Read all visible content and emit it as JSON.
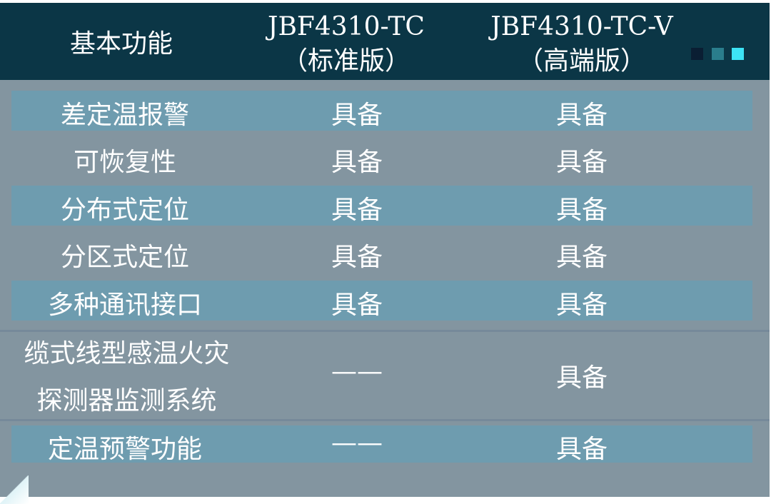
{
  "header": {
    "col1": "基本功能",
    "col2_line1": "JBF4310-TC",
    "col2_line2": "（标准版）",
    "col3_line1": "JBF4310-TC-V",
    "col3_line2": "（高端版）"
  },
  "colors": {
    "header_bg": "#0b3646",
    "body_bg": "#8395a0",
    "band": "#6e9caf",
    "squares": [
      "#0a1e33",
      "#2a7d8c",
      "#3de3f5"
    ]
  },
  "rows": [
    {
      "feature": "差定温报警",
      "standard": "具备",
      "premium": "具备"
    },
    {
      "feature": "可恢复性",
      "standard": "具备",
      "premium": "具备"
    },
    {
      "feature": "分布式定位",
      "standard": "具备",
      "premium": "具备"
    },
    {
      "feature": "分区式定位",
      "standard": "具备",
      "premium": "具备"
    },
    {
      "feature": "多种通讯接口",
      "standard": "具备",
      "premium": "具备"
    },
    {
      "feature_line1": "缆式线型感温火灾",
      "feature_line2": "探测器监测系统",
      "standard": "——",
      "premium": "具备"
    },
    {
      "feature": "定温预警功能",
      "standard": "——",
      "premium": "具备"
    }
  ]
}
